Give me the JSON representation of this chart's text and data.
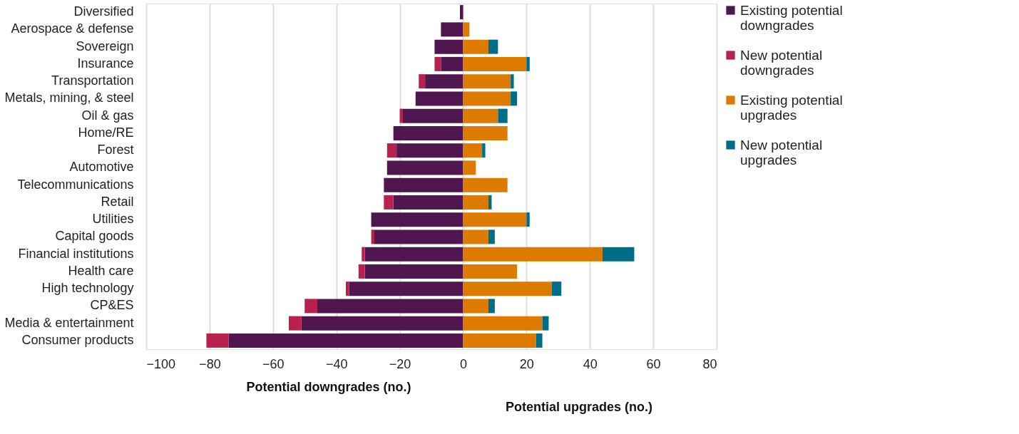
{
  "chart_data": {
    "type": "bar",
    "orientation": "horizontal",
    "stacked": true,
    "categories": [
      "Diversified",
      "Aerospace & defense",
      "Sovereign",
      "Insurance",
      "Transportation",
      "Metals, mining, & steel",
      "Oil & gas",
      "Home/RE",
      "Forest",
      "Automotive",
      "Telecommunications",
      "Retail",
      "Utilities",
      "Capital goods",
      "Financial institutions",
      "Health care",
      "High technology",
      "CP&ES",
      "Media & entertainment",
      "Consumer products"
    ],
    "series": [
      {
        "name": "Existing potential downgrades",
        "color": "#4f1650",
        "values": [
          -1,
          -7,
          -9,
          -7,
          -12,
          -15,
          -19,
          -22,
          -21,
          -24,
          -25,
          -22,
          -29,
          -28,
          -31,
          -31,
          -36,
          -46,
          -51,
          -74
        ]
      },
      {
        "name": "New potential downgrades",
        "color": "#b8204e",
        "values": [
          0,
          0,
          0,
          -2,
          -2,
          0,
          -1,
          0,
          -3,
          0,
          0,
          -3,
          0,
          -1,
          -1,
          -2,
          -1,
          -4,
          -4,
          -7
        ]
      },
      {
        "name": "Existing potential upgrades",
        "color": "#dd7b00",
        "values": [
          0,
          2,
          8,
          20,
          15,
          15,
          11,
          14,
          6,
          4,
          14,
          8,
          20,
          8,
          44,
          17,
          28,
          8,
          25,
          23
        ]
      },
      {
        "name": "New potential upgrades",
        "color": "#006d88",
        "values": [
          0,
          0,
          3,
          1,
          1,
          2,
          3,
          0,
          1,
          0,
          0,
          1,
          1,
          2,
          10,
          0,
          3,
          2,
          2,
          2
        ]
      }
    ],
    "xlim": [
      -100,
      80
    ],
    "xticks": [
      -100,
      -80,
      -60,
      -40,
      -20,
      0,
      20,
      40,
      60,
      80
    ],
    "xlabel": "Potential downgrades (no.)",
    "annotations": [
      "Potential upgrades (no.)"
    ],
    "grid": "x",
    "legend": "right"
  }
}
